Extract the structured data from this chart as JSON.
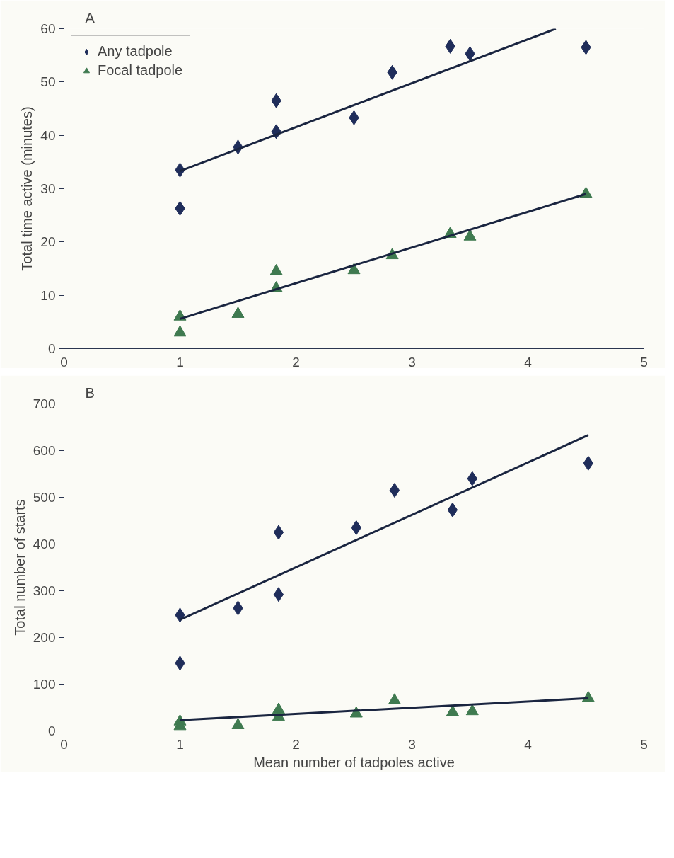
{
  "chart_data": [
    {
      "type": "scatter",
      "title": "A",
      "ylabel": "Total time active (minutes)",
      "xlim": [
        0,
        5
      ],
      "xticks": [
        0,
        1,
        2,
        3,
        4,
        5
      ],
      "ylim": [
        0,
        60
      ],
      "yticks": [
        0,
        10,
        20,
        30,
        40,
        50,
        60
      ],
      "grid": false,
      "legend": "top left",
      "series": [
        {
          "name": "Any tadpole",
          "marker": "diamond",
          "color": "#1f2d5a",
          "x": [
            1,
            1,
            1.5,
            1.83,
            1.83,
            2.5,
            2.83,
            3.33,
            3.5,
            4.5
          ],
          "values": [
            33.5,
            26.3,
            37.8,
            46.5,
            40.7,
            43.3,
            51.8,
            56.7,
            55.3,
            56.5
          ]
        },
        {
          "name": "Focal tadpole",
          "marker": "triangle",
          "color": "#3f7a50",
          "x": [
            1,
            1,
            1.5,
            1.83,
            1.83,
            2.5,
            2.83,
            3.33,
            3.5,
            4.5
          ],
          "values": [
            6,
            3,
            6.5,
            14.5,
            11.3,
            14.7,
            17.5,
            21.5,
            21,
            29
          ]
        },
        {
          "type": "line",
          "color": "#1a2540",
          "x": [
            1,
            4.24
          ],
          "values": [
            33.3,
            60
          ]
        },
        {
          "type": "line",
          "color": "#1a2540",
          "x": [
            1,
            4.5
          ],
          "values": [
            5.6,
            29
          ]
        }
      ]
    },
    {
      "type": "scatter",
      "title": "B",
      "xlabel": "Mean number of tadpoles active",
      "ylabel": "Total number of starts",
      "xlim": [
        0,
        5
      ],
      "xticks": [
        0,
        1,
        2,
        3,
        4,
        5
      ],
      "ylim": [
        0,
        700
      ],
      "yticks": [
        0,
        100,
        200,
        300,
        400,
        500,
        600,
        700
      ],
      "grid": false,
      "legend": false,
      "series": [
        {
          "marker": "diamond",
          "color": "#1f2d5a",
          "x": [
            1,
            1,
            1.5,
            1.85,
            1.85,
            2.52,
            2.85,
            3.35,
            3.52,
            4.52
          ],
          "values": [
            248,
            145,
            263,
            425,
            292,
            435,
            515,
            473,
            540,
            573
          ]
        },
        {
          "marker": "triangle",
          "color": "#3f7a50",
          "x": [
            1,
            1,
            1.5,
            1.85,
            1.85,
            2.52,
            2.85,
            3.35,
            3.52,
            4.52
          ],
          "values": [
            20,
            10,
            12,
            45,
            30,
            37,
            65,
            40,
            42,
            70
          ]
        },
        {
          "type": "line",
          "color": "#1a2540",
          "x": [
            1,
            4.52
          ],
          "values": [
            238,
            633
          ]
        },
        {
          "type": "line",
          "color": "#1a2540",
          "x": [
            1,
            4.52
          ],
          "values": [
            23,
            70
          ]
        }
      ]
    }
  ]
}
